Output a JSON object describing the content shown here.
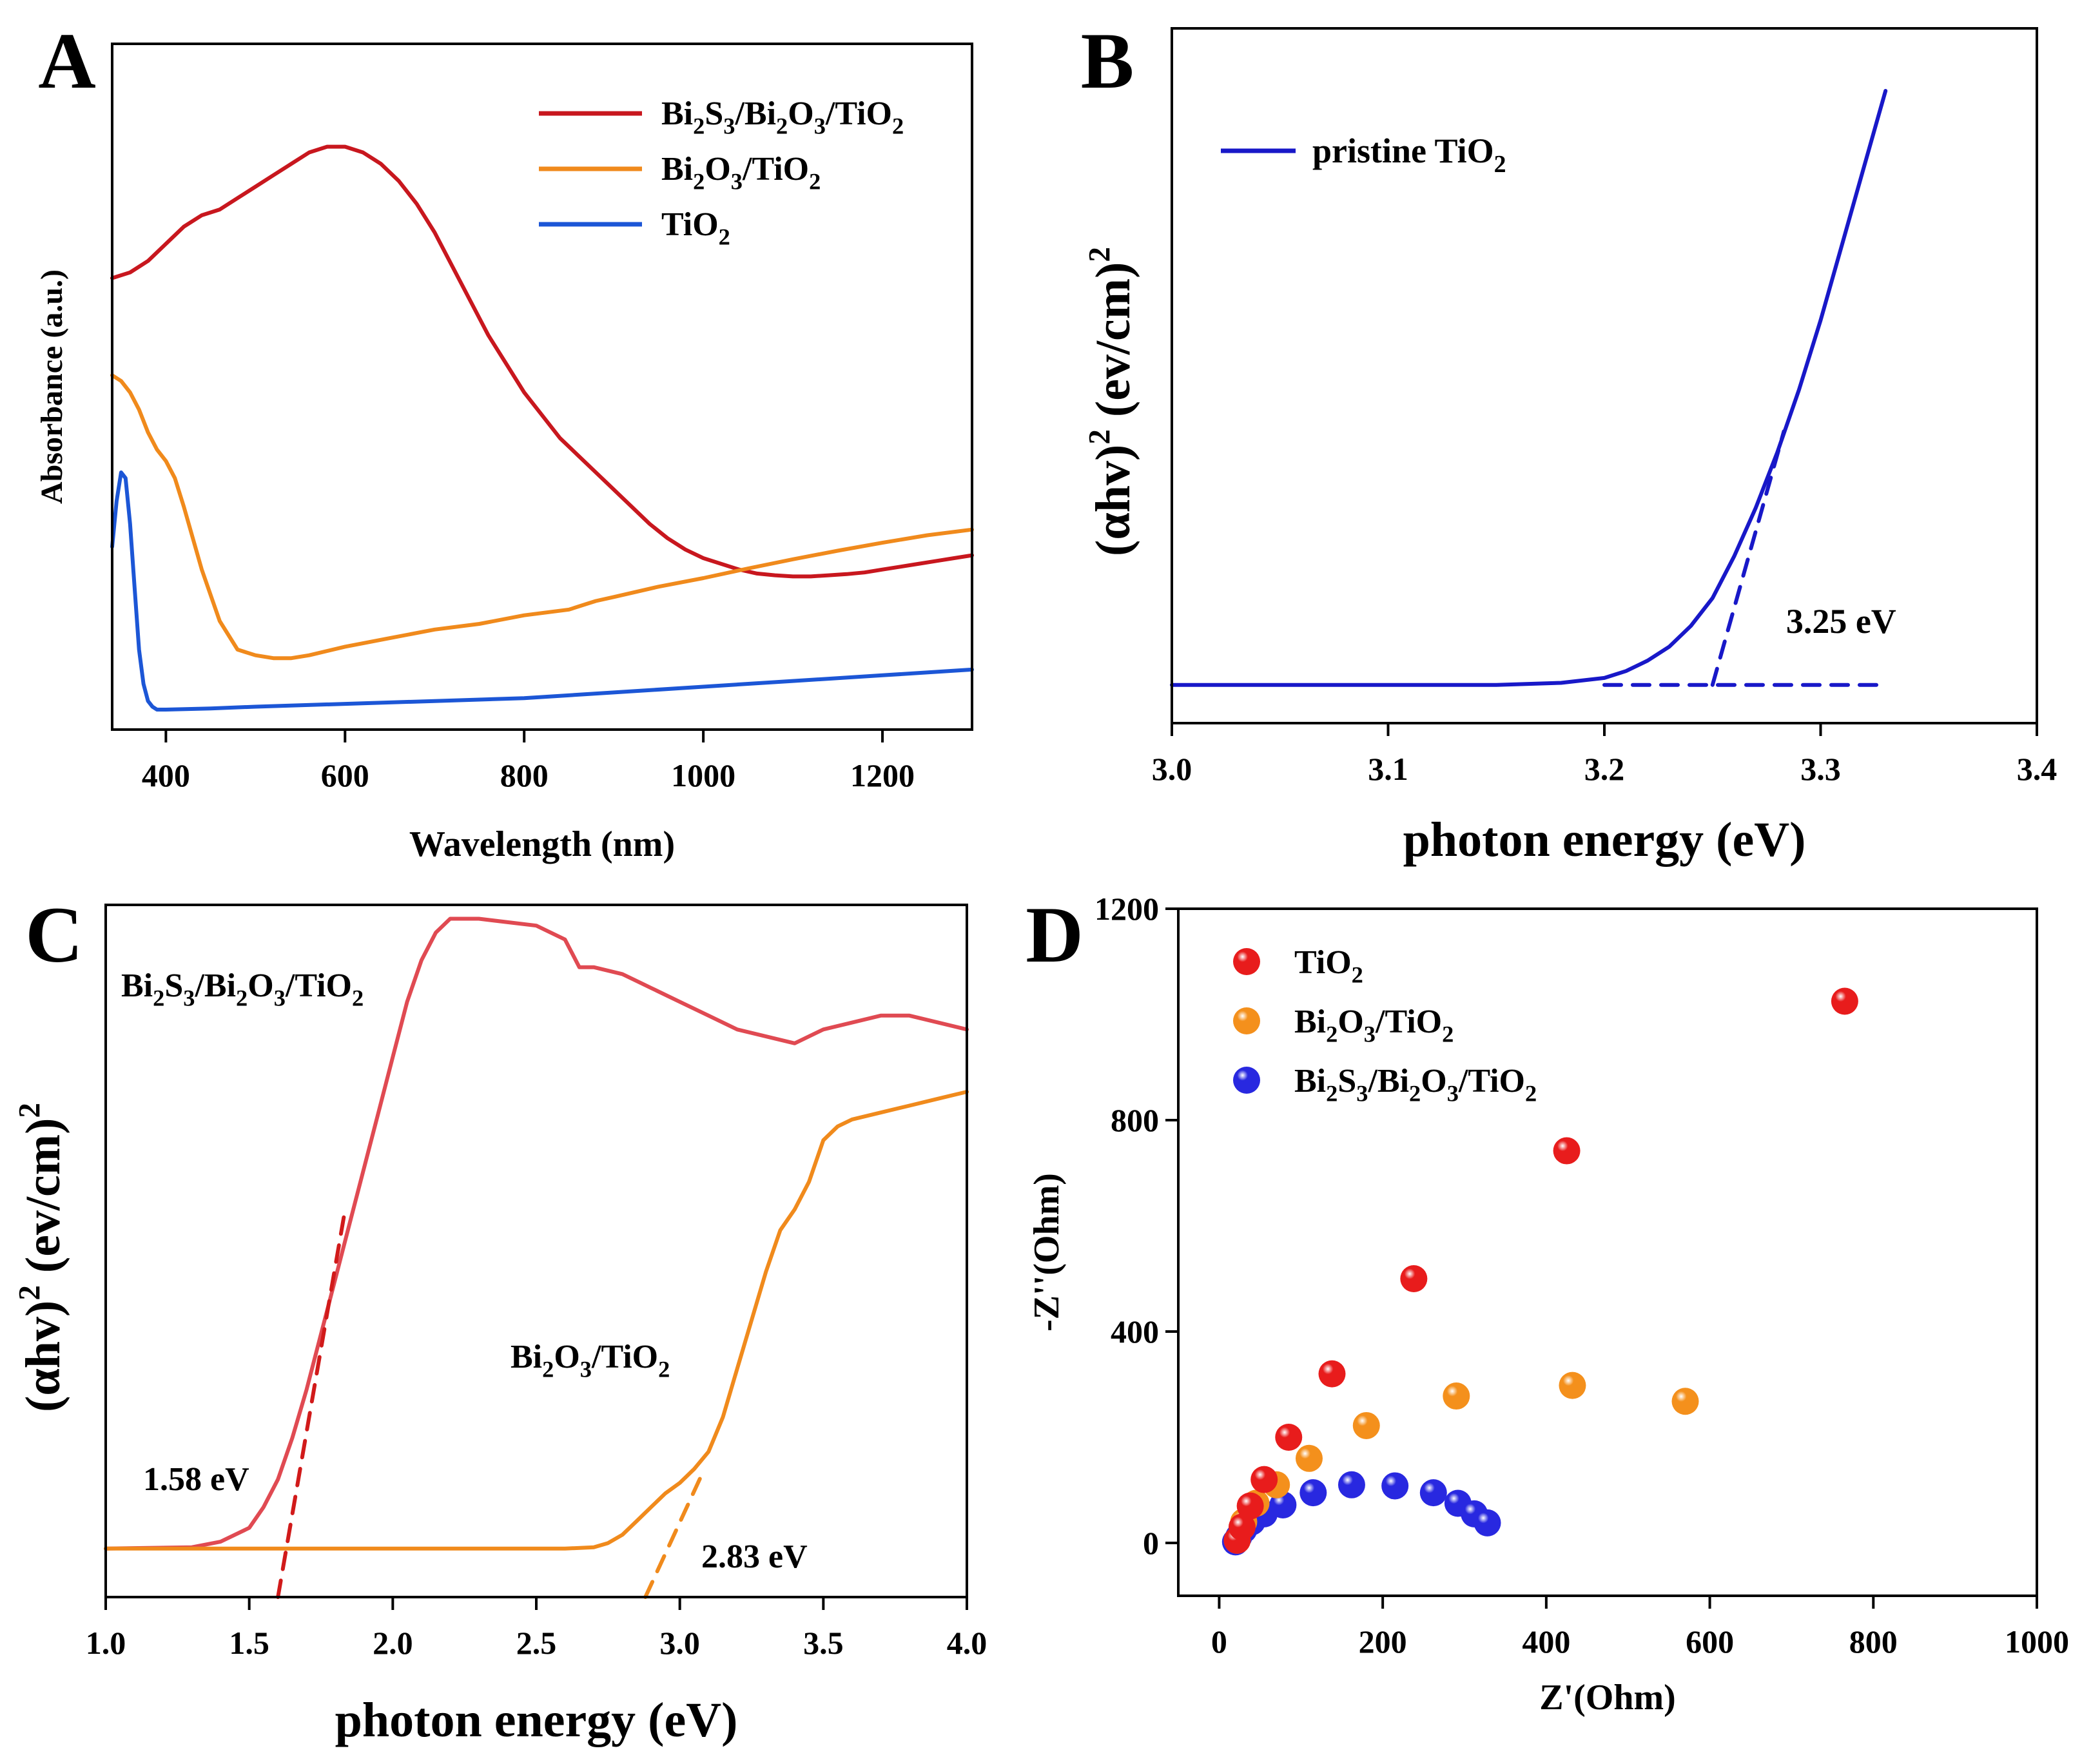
{
  "chart_data": [
    {
      "type": "line",
      "panel_label": "A",
      "xlabel": "Wavelength (nm)",
      "ylabel": "Absorbance (a.u.)",
      "xlim": [
        340,
        1300
      ],
      "ylim": [
        0,
        1.2
      ],
      "xticks": [
        "400",
        "600",
        "800",
        "1000",
        "1200"
      ],
      "series": [
        {
          "name": "Bi2S3/Bi2O3/TiO2",
          "legend_main": "Bi",
          "legend_subs": [
            "2",
            "3",
            "2",
            "3",
            "2"
          ],
          "legend_parts": [
            "S",
            "/Bi",
            "O",
            "/TiO",
            ""
          ],
          "color": "#c8171e",
          "x": [
            340,
            360,
            380,
            400,
            420,
            440,
            460,
            480,
            500,
            520,
            540,
            560,
            580,
            600,
            620,
            640,
            660,
            680,
            700,
            720,
            740,
            760,
            780,
            800,
            820,
            840,
            860,
            880,
            900,
            920,
            940,
            960,
            980,
            1000,
            1020,
            1040,
            1060,
            1080,
            1100,
            1120,
            1140,
            1160,
            1180,
            1200,
            1220,
            1240,
            1260,
            1280,
            1300
          ],
          "y": [
            0.79,
            0.8,
            0.82,
            0.85,
            0.88,
            0.9,
            0.91,
            0.93,
            0.95,
            0.97,
            0.99,
            1.01,
            1.02,
            1.02,
            1.01,
            0.99,
            0.96,
            0.92,
            0.87,
            0.81,
            0.75,
            0.69,
            0.64,
            0.59,
            0.55,
            0.51,
            0.48,
            0.45,
            0.42,
            0.39,
            0.36,
            0.335,
            0.315,
            0.3,
            0.29,
            0.28,
            0.273,
            0.27,
            0.268,
            0.268,
            0.27,
            0.272,
            0.275,
            0.28,
            0.285,
            0.29,
            0.295,
            0.3,
            0.305
          ]
        },
        {
          "name": "Bi2O3/TiO2",
          "legend_main": "Bi",
          "legend_subs": [
            "2",
            "3",
            "2"
          ],
          "legend_parts": [
            "O",
            "/TiO",
            ""
          ],
          "color": "#f08a1c",
          "x": [
            340,
            350,
            360,
            370,
            380,
            390,
            400,
            410,
            420,
            440,
            460,
            480,
            500,
            520,
            540,
            560,
            600,
            650,
            700,
            750,
            800,
            850,
            870,
            880,
            900,
            950,
            1000,
            1050,
            1100,
            1150,
            1200,
            1250,
            1300
          ],
          "y": [
            0.62,
            0.61,
            0.59,
            0.56,
            0.52,
            0.49,
            0.47,
            0.44,
            0.39,
            0.28,
            0.19,
            0.14,
            0.13,
            0.125,
            0.125,
            0.13,
            0.145,
            0.16,
            0.175,
            0.185,
            0.2,
            0.21,
            0.22,
            0.225,
            0.232,
            0.25,
            0.265,
            0.282,
            0.298,
            0.313,
            0.327,
            0.34,
            0.35
          ]
        },
        {
          "name": "TiO2",
          "legend_main": "TiO",
          "legend_subs": [
            "2"
          ],
          "legend_parts": [
            ""
          ],
          "color": "#1c56d6",
          "x": [
            340,
            345,
            350,
            355,
            360,
            365,
            370,
            375,
            380,
            385,
            390,
            400,
            450,
            500,
            600,
            700,
            800,
            900,
            1000,
            1100,
            1200,
            1300
          ],
          "y": [
            0.32,
            0.4,
            0.45,
            0.44,
            0.36,
            0.25,
            0.14,
            0.08,
            0.05,
            0.04,
            0.035,
            0.035,
            0.037,
            0.04,
            0.045,
            0.05,
            0.055,
            0.065,
            0.075,
            0.085,
            0.095,
            0.105
          ]
        }
      ]
    },
    {
      "type": "line",
      "panel_label": "B",
      "xlabel": "photon energy (eV)",
      "ylabel_main": "(αhv)",
      "ylabel_sup": "2",
      "ylabel_unit": "(ev/cm)",
      "ylabel_unit_sup": "2",
      "xlim": [
        3.0,
        3.4
      ],
      "ylim": [
        0,
        1.0
      ],
      "xticks": [
        "3.0",
        "3.1",
        "3.2",
        "3.3",
        "3.4"
      ],
      "annotation": "3.25 eV",
      "series": [
        {
          "name": "pristine TiO2",
          "legend_main": "pristine  TiO",
          "legend_subs": [
            "2"
          ],
          "legend_parts": [
            ""
          ],
          "color": "#1818c8",
          "x": [
            3.0,
            3.15,
            3.18,
            3.2,
            3.21,
            3.22,
            3.23,
            3.24,
            3.25,
            3.26,
            3.27,
            3.28,
            3.29,
            3.3,
            3.31,
            3.32,
            3.33
          ],
          "y": [
            0.055,
            0.055,
            0.058,
            0.065,
            0.075,
            0.09,
            0.11,
            0.14,
            0.18,
            0.24,
            0.31,
            0.39,
            0.48,
            0.58,
            0.69,
            0.8,
            0.91
          ]
        },
        {
          "name": "tangent",
          "dashed": true,
          "color": "#1818c8",
          "x": [
            3.25,
            3.283
          ],
          "y": [
            0.055,
            0.42
          ]
        },
        {
          "name": "baseline",
          "dashed": true,
          "color": "#1818c8",
          "x": [
            3.2,
            3.33
          ],
          "y": [
            0.055,
            0.055
          ]
        }
      ]
    },
    {
      "type": "line",
      "panel_label": "C",
      "xlabel": "photon energy (eV)",
      "ylabel_main": "(αhv)",
      "ylabel_sup": "2",
      "ylabel_unit": "(ev/cm)",
      "ylabel_unit_sup": "2",
      "xlim": [
        1.0,
        4.0
      ],
      "ylim": [
        0,
        1.0
      ],
      "xticks": [
        "1.0",
        "1.5",
        "2.0",
        "2.5",
        "3.0",
        "3.5",
        "4.0"
      ],
      "annotations": [
        "1.58 eV",
        "2.83 eV"
      ],
      "series": [
        {
          "name": "Bi2S3/Bi2O3/TiO2",
          "label_main": "Bi",
          "label_subs": [
            "2",
            "3",
            "2",
            "3",
            "2"
          ],
          "label_parts": [
            "S",
            "/Bi",
            "O",
            "/TiO",
            ""
          ],
          "color": "#e04a52",
          "x": [
            1.0,
            1.3,
            1.4,
            1.5,
            1.55,
            1.6,
            1.65,
            1.7,
            1.75,
            1.8,
            1.85,
            1.9,
            1.95,
            2.0,
            2.05,
            2.1,
            2.15,
            2.2,
            2.3,
            2.4,
            2.5,
            2.6,
            2.65,
            2.7,
            2.8,
            2.9,
            3.0,
            3.1,
            3.2,
            3.3,
            3.4,
            3.5,
            3.6,
            3.7,
            3.8,
            3.9,
            4.0
          ],
          "y": [
            0.07,
            0.072,
            0.08,
            0.1,
            0.13,
            0.17,
            0.23,
            0.3,
            0.38,
            0.46,
            0.54,
            0.62,
            0.7,
            0.78,
            0.86,
            0.92,
            0.96,
            0.98,
            0.98,
            0.975,
            0.97,
            0.95,
            0.91,
            0.91,
            0.9,
            0.88,
            0.86,
            0.84,
            0.82,
            0.81,
            0.8,
            0.82,
            0.83,
            0.84,
            0.84,
            0.83,
            0.82
          ]
        },
        {
          "name": "Bi2O3/TiO2",
          "label_main": "Bi",
          "label_subs": [
            "2",
            "3",
            "2"
          ],
          "label_parts": [
            "O",
            "/TiO",
            ""
          ],
          "color": "#f08a1c",
          "x": [
            1.0,
            2.6,
            2.7,
            2.75,
            2.8,
            2.85,
            2.9,
            2.95,
            3.0,
            3.05,
            3.1,
            3.15,
            3.2,
            3.25,
            3.3,
            3.35,
            3.4,
            3.45,
            3.5,
            3.55,
            3.6,
            3.7,
            3.8,
            3.9,
            4.0
          ],
          "y": [
            0.07,
            0.07,
            0.072,
            0.078,
            0.09,
            0.11,
            0.13,
            0.15,
            0.165,
            0.185,
            0.21,
            0.26,
            0.33,
            0.4,
            0.47,
            0.53,
            0.56,
            0.6,
            0.66,
            0.68,
            0.69,
            0.7,
            0.71,
            0.72,
            0.73
          ]
        },
        {
          "name": "tangent-1",
          "dashed": true,
          "color": "#d11a1a",
          "x": [
            1.6,
            1.83
          ],
          "y": [
            0.0,
            0.55
          ]
        },
        {
          "name": "tangent-2",
          "dashed": true,
          "color": "#f08a1c",
          "x": [
            2.88,
            3.08
          ],
          "y": [
            0.0,
            0.18
          ]
        }
      ]
    },
    {
      "type": "scatter",
      "panel_label": "D",
      "xlabel": "Z'(Ohm)",
      "ylabel": "-Z''(Ohm)",
      "xlim": [
        -50,
        1000
      ],
      "ylim": [
        -100,
        1200
      ],
      "xticks": [
        0,
        200,
        400,
        600,
        800,
        1000
      ],
      "yticks": [
        0,
        400,
        800,
        1200
      ],
      "series": [
        {
          "name": "TiO2",
          "legend_main": "TiO",
          "legend_subs": [
            "2"
          ],
          "legend_parts": [
            ""
          ],
          "color": "#e81c1c",
          "x": [
            22,
            28,
            38,
            55,
            85,
            138,
            238,
            425,
            765
          ],
          "y": [
            5,
            30,
            70,
            120,
            200,
            320,
            500,
            742,
            1025
          ]
        },
        {
          "name": "Bi2O3/TiO2",
          "legend_main": "Bi",
          "legend_subs": [
            "2",
            "3",
            "2"
          ],
          "legend_parts": [
            "O",
            "/TiO",
            ""
          ],
          "color": "#f4901c",
          "x": [
            22,
            30,
            45,
            70,
            110,
            180,
            290,
            432,
            570
          ],
          "y": [
            5,
            40,
            75,
            110,
            160,
            222,
            278,
            298,
            268
          ]
        },
        {
          "name": "Bi2S3/Bi2O3/TiO2",
          "legend_main": "Bi",
          "legend_subs": [
            "2",
            "3",
            "2",
            "3",
            "2"
          ],
          "legend_parts": [
            "S",
            "/Bi",
            "O",
            "/TiO",
            ""
          ],
          "color": "#2828e0",
          "x": [
            20,
            24,
            30,
            40,
            55,
            78,
            115,
            162,
            215,
            262,
            292,
            312,
            328
          ],
          "y": [
            2,
            12,
            25,
            40,
            55,
            72,
            95,
            110,
            108,
            95,
            75,
            55,
            38
          ]
        }
      ]
    }
  ]
}
